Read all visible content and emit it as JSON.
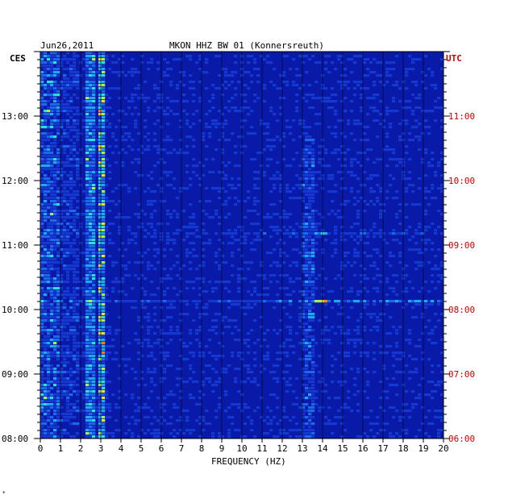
{
  "chart_data": {
    "type": "heatmap",
    "header_date": "Jun26,2011",
    "header_title": "MKON HHZ BW 01 (Konnersreuth)",
    "left_axis_label": "CES",
    "right_axis_label": "UTC",
    "xlabel": "FREQUENCY (HZ)",
    "x_ticks": [
      0,
      1,
      2,
      3,
      4,
      5,
      6,
      7,
      8,
      9,
      10,
      11,
      12,
      13,
      14,
      15,
      16,
      17,
      18,
      19,
      20
    ],
    "xlim": [
      0,
      20
    ],
    "y_ticks_left": [
      "13:00",
      "12:00",
      "11:00",
      "10:00",
      "09:00",
      "08:00"
    ],
    "y_ticks_right": [
      "11:00",
      "10:00",
      "09:00",
      "08:00",
      "06:00"
    ],
    "y_ticks_right_full": [
      "11:00",
      "10:00",
      "09:00",
      "08:00",
      "07:00",
      "06:00"
    ],
    "grid": true,
    "colors": {
      "background": "#0a1aa8",
      "low": "#1030c8",
      "mid": "#20a0e0",
      "high": "#f0e020",
      "peak": "#e02010",
      "utc_label": "#cc0000"
    },
    "footer_mark": "*"
  }
}
